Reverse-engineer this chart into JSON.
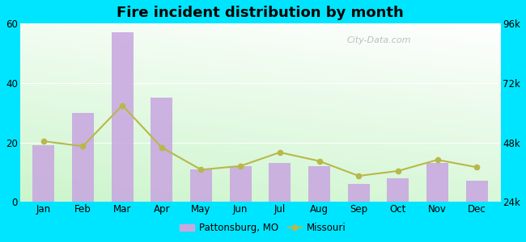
{
  "title": "Fire incident distribution by month",
  "months": [
    "Jan",
    "Feb",
    "Mar",
    "Apr",
    "May",
    "Jun",
    "Jul",
    "Aug",
    "Sep",
    "Oct",
    "Nov",
    "Dec"
  ],
  "bar_values": [
    19,
    30,
    57,
    35,
    11,
    12,
    13,
    12,
    6,
    8,
    13,
    7
  ],
  "line_values": [
    48500,
    46500,
    63000,
    46000,
    37000,
    38500,
    44000,
    40500,
    34500,
    36500,
    41000,
    38000
  ],
  "bar_color": "#c9a8e0",
  "line_color": "#b8b84a",
  "left_ylim": [
    0,
    60
  ],
  "right_ylim": [
    24000,
    96000
  ],
  "left_yticks": [
    0,
    20,
    40,
    60
  ],
  "right_yticks": [
    24000,
    48000,
    72000,
    96000
  ],
  "right_yticklabels": [
    "24k",
    "48k",
    "72k",
    "96k"
  ],
  "outer_bg": "#00e5ff",
  "legend_label_bar": "Pattonsburg, MO",
  "legend_label_line": "Missouri",
  "watermark": "City-Data.com",
  "fig_width": 6.5,
  "fig_height": 3.0,
  "dpi": 100
}
